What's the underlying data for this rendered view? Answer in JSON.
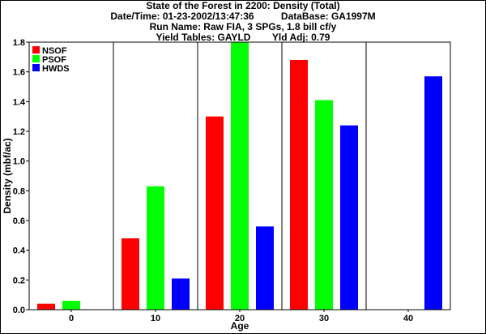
{
  "header": {
    "title": "State of the Forest in 2200: Density (Total)",
    "datetime": "Date/Time: 01-23-2002/13:47:36",
    "database": "DataBase: GA1997M",
    "run_name": "Run Name: Raw FIA, 3 SPGs, 1.8 bill cf/y",
    "yield_tables": "Yield Tables: GAYLD",
    "yld_adj": "Yld Adj: 0.79"
  },
  "chart_data": {
    "type": "bar",
    "title": "State of the Forest in 2200: Density (Total)",
    "xlabel": "Age",
    "ylabel": "Density (mbf/ac)",
    "categories": [
      "0",
      "10",
      "20",
      "30",
      "40"
    ],
    "ylim": [
      0,
      1.8
    ],
    "yticks": [
      "0.0",
      "0.2",
      "0.4",
      "0.6",
      "0.8",
      "1.0",
      "1.2",
      "1.4",
      "1.6",
      "1.8"
    ],
    "grid": false,
    "legend": "top-left",
    "series": [
      {
        "name": "NSOF",
        "color": "#ff0000",
        "values": [
          0.04,
          0.48,
          1.3,
          1.68,
          null
        ]
      },
      {
        "name": "PSOF",
        "color": "#00ff00",
        "values": [
          0.06,
          0.83,
          1.8,
          1.41,
          null
        ]
      },
      {
        "name": "HWDS",
        "color": "#0000ff",
        "values": [
          null,
          0.21,
          0.56,
          1.24,
          1.57
        ]
      }
    ]
  }
}
